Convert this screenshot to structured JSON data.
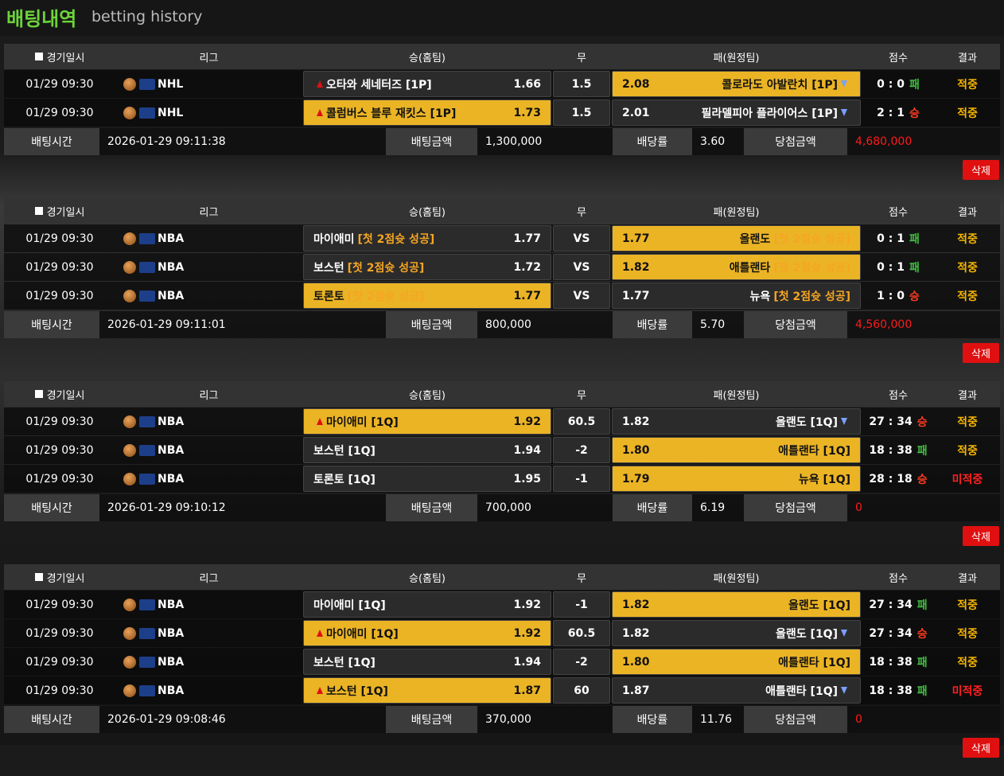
{
  "header": {
    "title": "배팅내역",
    "subtitle": "betting history"
  },
  "columns": [
    "경기일시",
    "리그",
    "승(홈팀)",
    "무",
    "패(원정팀)",
    "점수",
    "결과"
  ],
  "summary_labels": [
    "배팅시간",
    "배팅금액",
    "배당률",
    "당첨금액"
  ],
  "delete_label": "삭제",
  "colors": {
    "highlight": "#ebb425",
    "tag": "#f5a623",
    "win_amount": "#ff1a1a",
    "delete": "#e01010"
  },
  "bets": [
    {
      "rows": [
        {
          "date": "01/29 09:30",
          "league": "NHL",
          "home": "오타와 세네터즈 [1P]",
          "home_odds": "1.66",
          "draw": "1.5",
          "away_odds": "2.08",
          "away": "콜로라도 아발란치 [1P]",
          "score": "0 : 0",
          "mark": "패",
          "mark_color": "#3fbf3f",
          "result": "적중",
          "result_color": "#f5b400",
          "pick": "away",
          "arrows": true
        },
        {
          "date": "01/29 09:30",
          "league": "NHL",
          "home": "콜럼버스 블루 재킷스 [1P]",
          "home_odds": "1.73",
          "draw": "1.5",
          "away_odds": "2.01",
          "away": "필라델피아 플라이어스 [1P]",
          "score": "2 : 1",
          "mark": "승",
          "mark_color": "#ff3b1f",
          "result": "적중",
          "result_color": "#f5b400",
          "pick": "home",
          "arrows": true
        }
      ],
      "summary": {
        "time": "2026-01-29 09:11:38",
        "amount": "1,300,000",
        "odds": "3.60",
        "win": "4,680,000"
      }
    },
    {
      "rows": [
        {
          "date": "01/29 09:30",
          "league": "NBA",
          "home": "마이애미",
          "home_tag": "[첫 2점슛 성공]",
          "home_odds": "1.77",
          "draw": "VS",
          "away_odds": "1.77",
          "away": "올랜도",
          "away_tag": "[첫 2점슛 성공]",
          "score": "0 : 1",
          "mark": "패",
          "mark_color": "#3fbf3f",
          "result": "적중",
          "result_color": "#f5b400",
          "pick": "away",
          "arrows": false
        },
        {
          "date": "01/29 09:30",
          "league": "NBA",
          "home": "보스턴",
          "home_tag": "[첫 2점슛 성공]",
          "home_odds": "1.72",
          "draw": "VS",
          "away_odds": "1.82",
          "away": "애틀랜타",
          "away_tag": "[첫 2점슛 성공]",
          "score": "0 : 1",
          "mark": "패",
          "mark_color": "#3fbf3f",
          "result": "적중",
          "result_color": "#f5b400",
          "pick": "away",
          "arrows": false
        },
        {
          "date": "01/29 09:30",
          "league": "NBA",
          "home": "토론토",
          "home_tag": "[첫 2점슛 성공]",
          "home_odds": "1.77",
          "draw": "VS",
          "away_odds": "1.77",
          "away": "뉴욕",
          "away_tag": "[첫 2점슛 성공]",
          "score": "1 : 0",
          "mark": "승",
          "mark_color": "#ff3b1f",
          "result": "적중",
          "result_color": "#f5b400",
          "pick": "home",
          "arrows": false
        }
      ],
      "summary": {
        "time": "2026-01-29 09:11:01",
        "amount": "800,000",
        "odds": "5.70",
        "win": "4,560,000"
      }
    },
    {
      "rows": [
        {
          "date": "01/29 09:30",
          "league": "NBA",
          "home": "마이애미 [1Q]",
          "home_odds": "1.92",
          "draw": "60.5",
          "away_odds": "1.82",
          "away": "올랜도 [1Q]",
          "score": "27 : 34",
          "mark": "승",
          "mark_color": "#ff3b1f",
          "result": "적중",
          "result_color": "#f5b400",
          "pick": "home",
          "arrows": true
        },
        {
          "date": "01/29 09:30",
          "league": "NBA",
          "home": "보스턴 [1Q]",
          "home_odds": "1.94",
          "draw": "-2",
          "away_odds": "1.80",
          "away": "애틀랜타 [1Q]",
          "score": "18 : 38",
          "mark": "패",
          "mark_color": "#3fbf3f",
          "result": "적중",
          "result_color": "#f5b400",
          "pick": "away",
          "arrows": false
        },
        {
          "date": "01/29 09:30",
          "league": "NBA",
          "home": "토론토 [1Q]",
          "home_odds": "1.95",
          "draw": "-1",
          "away_odds": "1.79",
          "away": "뉴욕 [1Q]",
          "score": "28 : 18",
          "mark": "승",
          "mark_color": "#ff3b1f",
          "result": "미적중",
          "result_color": "#ff2020",
          "pick": "away",
          "arrows": false
        }
      ],
      "summary": {
        "time": "2026-01-29 09:10:12",
        "amount": "700,000",
        "odds": "6.19",
        "win": "0"
      }
    },
    {
      "rows": [
        {
          "date": "01/29 09:30",
          "league": "NBA",
          "home": "마이애미 [1Q]",
          "home_odds": "1.92",
          "draw": "-1",
          "away_odds": "1.82",
          "away": "올랜도 [1Q]",
          "score": "27 : 34",
          "mark": "패",
          "mark_color": "#3fbf3f",
          "result": "적중",
          "result_color": "#f5b400",
          "pick": "away",
          "arrows": false
        },
        {
          "date": "01/29 09:30",
          "league": "NBA",
          "home": "마이애미 [1Q]",
          "home_odds": "1.92",
          "draw": "60.5",
          "away_odds": "1.82",
          "away": "올랜도 [1Q]",
          "score": "27 : 34",
          "mark": "승",
          "mark_color": "#ff3b1f",
          "result": "적중",
          "result_color": "#f5b400",
          "pick": "home",
          "arrows": true
        },
        {
          "date": "01/29 09:30",
          "league": "NBA",
          "home": "보스턴 [1Q]",
          "home_odds": "1.94",
          "draw": "-2",
          "away_odds": "1.80",
          "away": "애틀랜타 [1Q]",
          "score": "18 : 38",
          "mark": "패",
          "mark_color": "#3fbf3f",
          "result": "적중",
          "result_color": "#f5b400",
          "pick": "away",
          "arrows": false
        },
        {
          "date": "01/29 09:30",
          "league": "NBA",
          "home": "보스턴 [1Q]",
          "home_odds": "1.87",
          "draw": "60",
          "away_odds": "1.87",
          "away": "애틀랜타 [1Q]",
          "score": "18 : 38",
          "mark": "패",
          "mark_color": "#3fbf3f",
          "result": "미적중",
          "result_color": "#ff2020",
          "pick": "home",
          "arrows": true
        }
      ],
      "summary": {
        "time": "2026-01-29 09:08:46",
        "amount": "370,000",
        "odds": "11.76",
        "win": "0"
      }
    }
  ]
}
